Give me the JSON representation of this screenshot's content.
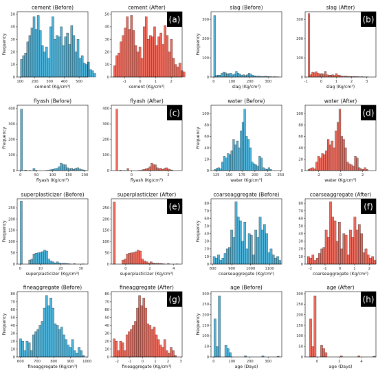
{
  "colors": {
    "before": "#4fb3d9",
    "after": "#ec6b5c",
    "edge": "#222222",
    "badge": "#000000"
  },
  "chart_data": [
    {
      "type": "bar",
      "title": "cement (Before)",
      "xlabel": "cement (Kg/cm³)",
      "ylabel": "Frequency",
      "xlim": [
        80,
        560
      ],
      "ylim": [
        0,
        52
      ],
      "xticks": [
        100,
        200,
        300,
        400,
        500
      ],
      "yticks": [
        0,
        10,
        20,
        30,
        40,
        50
      ],
      "color": "before",
      "badge": "",
      "bins": {
        "start": 102,
        "width": 14.2
      },
      "values": [
        14,
        17,
        19,
        28,
        33,
        39,
        48,
        38,
        49,
        37,
        25,
        20,
        24,
        15,
        40,
        48,
        30,
        33,
        32,
        40,
        25,
        32,
        35,
        26,
        41,
        33,
        20,
        30,
        15,
        17,
        11,
        10,
        12,
        6,
        5,
        3
      ]
    },
    {
      "type": "bar",
      "title": "cement (After)",
      "xlabel": "cement (Kg/cm³)",
      "ylabel": "",
      "xlim": [
        -1.85,
        2.7
      ],
      "ylim": [
        0,
        52
      ],
      "xticks": [
        -1,
        0,
        1,
        2
      ],
      "yticks": [
        0,
        10,
        20,
        30,
        40,
        50
      ],
      "color": "after",
      "badge": "(a)",
      "bins": {
        "start": -1.7,
        "width": 0.135
      },
      "values": [
        9,
        17,
        19,
        28,
        33,
        39,
        48,
        38,
        49,
        37,
        25,
        20,
        24,
        15,
        40,
        48,
        30,
        33,
        32,
        40,
        25,
        32,
        35,
        26,
        41,
        33,
        20,
        30,
        15,
        10,
        8,
        11,
        5,
        4
      ]
    },
    {
      "type": "bar",
      "title": "slag (Before)",
      "xlabel": "slag (Kg/cm³)",
      "ylabel": "Frequency",
      "xlim": [
        -15,
        375
      ],
      "ylim": [
        0,
        340
      ],
      "xticks": [
        0,
        100,
        200,
        300
      ],
      "yticks": [
        0,
        100,
        200,
        300
      ],
      "color": "before",
      "badge": "",
      "bins": {
        "start": 0,
        "width": 10
      },
      "values": [
        320,
        8,
        10,
        10,
        20,
        25,
        22,
        17,
        18,
        20,
        12,
        15,
        30,
        20,
        15,
        10,
        12,
        8,
        12,
        20,
        15,
        10,
        6,
        4,
        5,
        4,
        3,
        3,
        4,
        3,
        2,
        2,
        1,
        2,
        1,
        1
      ]
    },
    {
      "type": "bar",
      "title": "slag (After)",
      "xlabel": "slag (Kg/cm³)",
      "ylabel": "",
      "xlim": [
        -1.05,
        3.6
      ],
      "ylim": [
        0,
        340
      ],
      "xticks": [
        -1,
        0,
        1,
        2,
        3
      ],
      "yticks": [
        0,
        100,
        200,
        300
      ],
      "color": "after",
      "badge": "(b)",
      "bins": {
        "start": -0.86,
        "width": 0.12
      },
      "values": [
        330,
        12,
        25,
        22,
        28,
        20,
        15,
        18,
        15,
        30,
        12,
        10,
        10,
        12,
        8,
        18,
        10,
        8,
        5,
        4,
        5,
        4,
        3,
        3,
        2,
        3,
        2,
        2,
        1,
        2,
        1,
        1,
        1
      ]
    },
    {
      "type": "bar",
      "title": "flyash (Before)",
      "xlabel": "flyash (Kg/cm³)",
      "ylabel": "Frequency",
      "xlim": [
        -10,
        210
      ],
      "ylim": [
        0,
        420
      ],
      "xticks": [
        0,
        50,
        100,
        150,
        200
      ],
      "yticks": [
        0,
        100,
        200,
        300,
        400
      ],
      "color": "before",
      "badge": "",
      "bins": {
        "start": 0,
        "width": 6.5
      },
      "values": [
        395,
        0,
        3,
        0,
        1,
        0,
        14,
        2,
        0,
        0,
        0,
        0,
        1,
        2,
        5,
        8,
        12,
        14,
        24,
        48,
        38,
        37,
        18,
        12,
        15,
        8,
        15,
        18,
        10,
        6,
        4
      ]
    },
    {
      "type": "bar",
      "title": "flyash (After)",
      "xlabel": "flyash (Kg/cm³)",
      "ylabel": "",
      "xlim": [
        -1.1,
        2.75
      ],
      "ylim": [
        0,
        420
      ],
      "xticks": [
        0,
        1,
        2
      ],
      "yticks": [
        0,
        100,
        200,
        300,
        400
      ],
      "color": "after",
      "badge": "(c)",
      "bins": {
        "start": -0.85,
        "width": 0.1
      },
      "values": [
        395,
        0,
        3,
        0,
        1,
        0,
        14,
        0,
        0,
        0,
        0,
        0,
        1,
        2,
        5,
        8,
        12,
        14,
        24,
        48,
        38,
        37,
        18,
        12,
        15,
        8,
        15,
        18,
        10,
        6,
        4
      ]
    },
    {
      "type": "bar",
      "title": "water (Before)",
      "xlabel": "water (Kg/cm³)",
      "ylabel": "Frequency",
      "xlim": [
        115,
        252
      ],
      "ylim": [
        0,
        115
      ],
      "xticks": [
        125,
        150,
        175,
        200,
        225,
        250
      ],
      "yticks": [
        0,
        20,
        40,
        60,
        80,
        100
      ],
      "color": "before",
      "badge": "",
      "bins": {
        "start": 121,
        "width": 3.6
      },
      "values": [
        2,
        4,
        5,
        3,
        15,
        25,
        22,
        30,
        28,
        35,
        55,
        45,
        52,
        40,
        70,
        85,
        108,
        60,
        55,
        40,
        15,
        12,
        10,
        8,
        25,
        22,
        5,
        3,
        2,
        5,
        2
      ]
    },
    {
      "type": "bar",
      "title": "water (After)",
      "xlabel": "water (Kg/cm³)",
      "ylabel": "",
      "xlim": [
        -3.2,
        3.2
      ],
      "ylim": [
        0,
        115
      ],
      "xticks": [
        -2,
        0,
        2
      ],
      "yticks": [
        0,
        20,
        40,
        60,
        80,
        100
      ],
      "color": "after",
      "badge": "(d)",
      "bins": {
        "start": -2.95,
        "width": 0.175
      },
      "values": [
        2,
        4,
        5,
        3,
        15,
        25,
        22,
        30,
        28,
        35,
        55,
        45,
        52,
        40,
        70,
        85,
        108,
        60,
        55,
        40,
        15,
        12,
        10,
        8,
        25,
        22,
        5,
        3,
        2,
        5,
        2
      ]
    },
    {
      "type": "bar",
      "title": "superplasticizer (Before)",
      "xlabel": "superplasticizer (Kg/cm³)",
      "ylabel": "Frequency",
      "xlim": [
        -1.5,
        33.5
      ],
      "ylim": [
        0,
        290
      ],
      "xticks": [
        0,
        10,
        20,
        30
      ],
      "yticks": [
        0,
        50,
        100,
        150,
        200,
        250
      ],
      "color": "before",
      "badge": "",
      "bins": {
        "start": 0,
        "width": 1.05
      },
      "values": [
        280,
        0,
        0,
        0,
        18,
        22,
        45,
        48,
        50,
        52,
        55,
        62,
        58,
        22,
        14,
        10,
        5,
        10,
        5,
        3,
        4,
        3,
        2,
        1,
        0,
        2,
        0,
        0,
        0,
        1,
        0
      ]
    },
    {
      "type": "bar",
      "title": "superplasticizer (After)",
      "xlabel": "superplasticizer (Kg/cm³)",
      "ylabel": "",
      "xlim": [
        -1.2,
        4.7
      ],
      "ylim": [
        0,
        290
      ],
      "xticks": [
        0,
        2,
        4
      ],
      "yticks": [
        0,
        50,
        100,
        150,
        200,
        250
      ],
      "color": "after",
      "badge": "(e)",
      "bins": {
        "start": -1.04,
        "width": 0.18
      },
      "values": [
        275,
        0,
        0,
        0,
        18,
        22,
        45,
        48,
        50,
        52,
        55,
        62,
        58,
        22,
        14,
        10,
        5,
        10,
        5,
        3,
        4,
        3,
        2,
        1,
        0,
        2,
        0,
        0,
        0,
        1,
        0
      ]
    },
    {
      "type": "bar",
      "title": "coarseaggregate (Before)",
      "xlabel": "coarseaggregate (Kg/cm³)",
      "ylabel": "Frequency",
      "xlim": [
        790,
        1165
      ],
      "ylim": [
        0,
        86
      ],
      "xticks": [
        800,
        900,
        1000,
        1100
      ],
      "yticks": [
        0,
        10,
        20,
        30,
        40,
        50,
        60,
        70,
        80
      ],
      "color": "before",
      "badge": "",
      "bins": {
        "start": 801,
        "width": 11.6
      },
      "values": [
        10,
        8,
        12,
        5,
        8,
        14,
        20,
        22,
        45,
        35,
        82,
        62,
        57,
        30,
        55,
        20,
        40,
        38,
        12,
        45,
        35,
        62,
        45,
        52,
        40,
        15,
        20,
        12,
        8,
        10,
        5
      ]
    },
    {
      "type": "bar",
      "title": "coarseaggregate (After)",
      "xlabel": "coarseaggregate (Kg/cm³)",
      "ylabel": "",
      "xlim": [
        -2.35,
        2.45
      ],
      "ylim": [
        0,
        86
      ],
      "xticks": [
        -2,
        -1,
        0,
        1,
        2
      ],
      "yticks": [
        0,
        10,
        20,
        30,
        40,
        50,
        60,
        70,
        80
      ],
      "color": "after",
      "badge": "(f)",
      "bins": {
        "start": -2.2,
        "width": 0.15
      },
      "values": [
        10,
        8,
        12,
        5,
        8,
        14,
        20,
        22,
        45,
        35,
        82,
        62,
        57,
        30,
        55,
        20,
        40,
        38,
        12,
        45,
        35,
        62,
        45,
        52,
        40,
        15,
        20,
        12,
        8,
        10,
        5
      ]
    },
    {
      "type": "bar",
      "title": "fineaggregate (Before)",
      "xlabel": "fineaggregate (Kg/cm³)",
      "ylabel": "Frequency",
      "xlim": [
        580,
        1005
      ],
      "ylim": [
        0,
        83
      ],
      "xticks": [
        600,
        700,
        800,
        900,
        1000
      ],
      "yticks": [
        0,
        10,
        20,
        30,
        40,
        50,
        60,
        70,
        80
      ],
      "color": "before",
      "badge": "",
      "bins": {
        "start": 594,
        "width": 13
      },
      "values": [
        23,
        20,
        8,
        20,
        18,
        8,
        28,
        32,
        35,
        40,
        45,
        62,
        78,
        65,
        75,
        62,
        42,
        40,
        35,
        38,
        28,
        22,
        15,
        12,
        22,
        8,
        5,
        12,
        8,
        2
      ]
    },
    {
      "type": "bar",
      "title": "fineaggregate (After)",
      "xlabel": "fineaggregate (Kg/cm³)",
      "ylabel": "",
      "xlim": [
        -2.45,
        3.1
      ],
      "ylim": [
        0,
        83
      ],
      "xticks": [
        -2,
        -1,
        0,
        1,
        2,
        3
      ],
      "yticks": [
        0,
        10,
        20,
        30,
        40,
        50,
        60,
        70,
        80
      ],
      "color": "after",
      "badge": "(g)",
      "bins": {
        "start": -2.3,
        "width": 0.165
      },
      "values": [
        23,
        20,
        8,
        20,
        18,
        8,
        28,
        32,
        35,
        40,
        45,
        62,
        78,
        65,
        75,
        62,
        42,
        40,
        35,
        38,
        28,
        22,
        15,
        12,
        22,
        8,
        5,
        12,
        8,
        2
      ]
    },
    {
      "type": "bar",
      "title": "age (Before)",
      "xlabel": "age (Days)",
      "ylabel": "Frequency",
      "xlim": [
        -15,
        375
      ],
      "ylim": [
        0,
        310
      ],
      "xticks": [
        0,
        100,
        200,
        300
      ],
      "yticks": [
        0,
        50,
        100,
        150,
        200,
        250,
        300
      ],
      "color": "before",
      "badge": "",
      "bins": {
        "start": 1,
        "width": 12
      },
      "values": [
        180,
        50,
        290,
        0,
        0,
        55,
        40,
        20,
        0,
        0,
        0,
        0,
        0,
        0,
        5,
        0,
        0,
        0,
        0,
        0,
        0,
        0,
        5,
        0,
        0,
        0,
        0,
        0,
        0,
        3
      ]
    },
    {
      "type": "bar",
      "title": "age (After)",
      "xlabel": "age (Days)",
      "ylabel": "",
      "xlim": [
        -1.1,
        5.3
      ],
      "ylim": [
        0,
        310
      ],
      "xticks": [
        0,
        2,
        4
      ],
      "yticks": [
        0,
        50,
        100,
        150,
        200,
        250,
        300
      ],
      "color": "after",
      "badge": "(h)",
      "bins": {
        "start": -0.7,
        "width": 0.198
      },
      "values": [
        180,
        50,
        290,
        0,
        0,
        55,
        40,
        20,
        0,
        0,
        0,
        0,
        0,
        0,
        5,
        0,
        0,
        0,
        0,
        0,
        0,
        0,
        5,
        0,
        0,
        0,
        0,
        0,
        0,
        3
      ]
    }
  ]
}
